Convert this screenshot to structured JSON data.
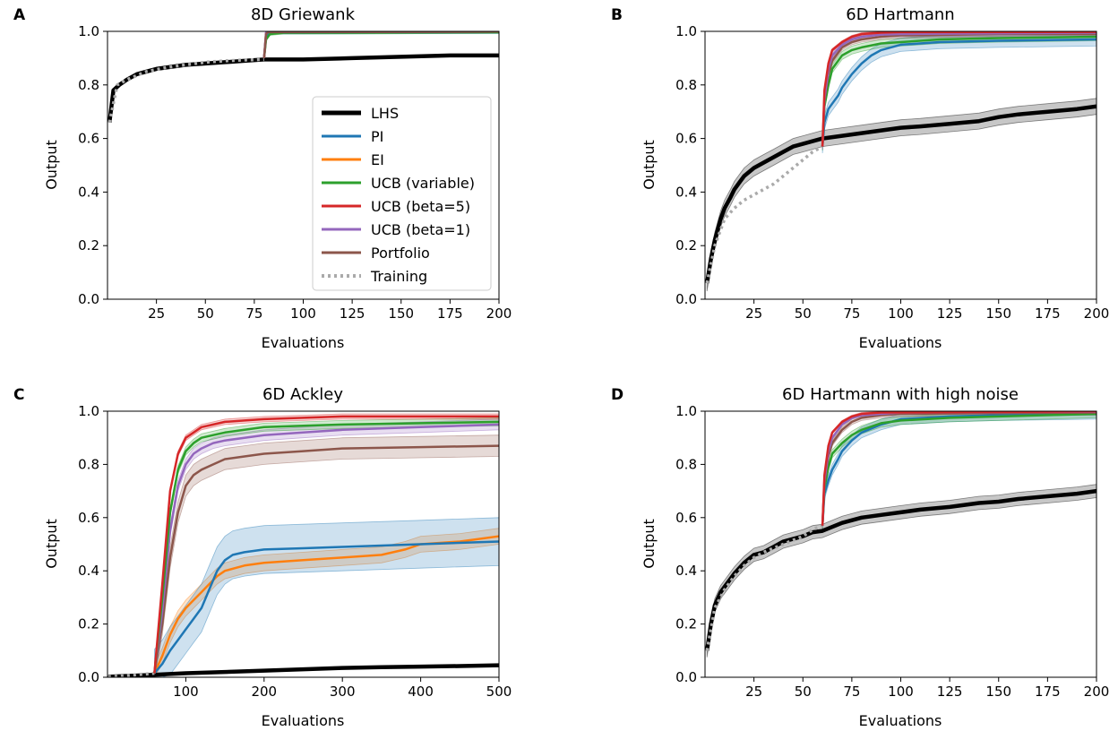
{
  "figure": {
    "legend": {
      "location": "right side of panel A",
      "entries": [
        {
          "label": "LHS",
          "color": "#000000",
          "style": "solid-thick"
        },
        {
          "label": "PI",
          "color": "#1f77b4",
          "style": "solid"
        },
        {
          "label": "EI",
          "color": "#ff7f0e",
          "style": "solid"
        },
        {
          "label": "UCB (variable)",
          "color": "#2ca02c",
          "style": "solid"
        },
        {
          "label": "UCB (beta=5)",
          "color": "#d62728",
          "style": "solid"
        },
        {
          "label": "UCB (beta=1)",
          "color": "#9467bd",
          "style": "solid"
        },
        {
          "label": "Portfolio",
          "color": "#8c564b",
          "style": "solid"
        },
        {
          "label": "Training",
          "color": "#aaaaaa",
          "style": "dotted"
        }
      ]
    }
  },
  "chart_data": [
    {
      "panel": "A",
      "type": "line",
      "title": "8D Griewank",
      "xlabel": "Evaluations",
      "ylabel": "Output",
      "xlim": [
        0,
        200
      ],
      "ylim": [
        0,
        1
      ],
      "xticks": [
        25,
        50,
        75,
        100,
        125,
        150,
        175,
        200
      ],
      "yticks": [
        0.0,
        0.2,
        0.4,
        0.6,
        0.8,
        1.0
      ],
      "series": [
        {
          "name": "LHS",
          "x": [
            1,
            3,
            6,
            10,
            15,
            20,
            25,
            30,
            40,
            50,
            60,
            70,
            80,
            100,
            125,
            150,
            175,
            200
          ],
          "y": [
            0.66,
            0.78,
            0.8,
            0.82,
            0.84,
            0.85,
            0.86,
            0.865,
            0.875,
            0.88,
            0.885,
            0.89,
            0.895,
            0.895,
            0.9,
            0.905,
            0.91,
            0.91
          ],
          "band": 0.0
        },
        {
          "name": "Training",
          "x": [
            1,
            5,
            10,
            20,
            30,
            40,
            50,
            60,
            70,
            80
          ],
          "y": [
            0.66,
            0.8,
            0.82,
            0.85,
            0.865,
            0.875,
            0.885,
            0.89,
            0.893,
            0.895
          ]
        },
        {
          "name": "PI",
          "x": [
            80,
            81,
            82,
            85,
            90,
            100,
            200
          ],
          "y": [
            0.9,
            0.98,
            0.99,
            0.995,
            0.995,
            0.995,
            0.997
          ],
          "band": 0.005
        },
        {
          "name": "UCB (variable)",
          "x": [
            80,
            81,
            83,
            90,
            200
          ],
          "y": [
            0.9,
            0.97,
            0.99,
            0.995,
            0.997
          ],
          "band": 0.005
        },
        {
          "name": "UCB (beta=5)",
          "x": [
            80,
            81,
            82,
            200
          ],
          "y": [
            0.9,
            0.995,
            0.998,
            0.999
          ],
          "band": 0.0
        },
        {
          "name": "UCB (beta=1)",
          "x": [
            80,
            81,
            82,
            200
          ],
          "y": [
            0.9,
            0.995,
            0.998,
            0.999
          ],
          "band": 0.0
        },
        {
          "name": "Portfolio",
          "x": [
            80,
            81,
            82,
            200
          ],
          "y": [
            0.9,
            0.99,
            0.997,
            0.999
          ],
          "band": 0.0
        }
      ]
    },
    {
      "panel": "B",
      "type": "line",
      "title": "6D Hartmann",
      "xlabel": "Evaluations",
      "ylabel": "Output",
      "xlim": [
        0,
        200
      ],
      "ylim": [
        0,
        1
      ],
      "xticks": [
        25,
        50,
        75,
        100,
        125,
        150,
        175,
        200
      ],
      "yticks": [
        0.0,
        0.2,
        0.4,
        0.6,
        0.8,
        1.0
      ],
      "series": [
        {
          "name": "LHS",
          "x": [
            1,
            3,
            5,
            8,
            10,
            13,
            15,
            18,
            20,
            25,
            30,
            35,
            40,
            45,
            50,
            55,
            60,
            70,
            80,
            90,
            100,
            110,
            125,
            140,
            150,
            160,
            175,
            190,
            200
          ],
          "y": [
            0.06,
            0.15,
            0.22,
            0.3,
            0.34,
            0.38,
            0.41,
            0.44,
            0.46,
            0.49,
            0.51,
            0.53,
            0.55,
            0.57,
            0.58,
            0.59,
            0.6,
            0.61,
            0.62,
            0.63,
            0.64,
            0.645,
            0.655,
            0.665,
            0.68,
            0.69,
            0.7,
            0.71,
            0.72
          ],
          "band": 0.03
        },
        {
          "name": "Training",
          "x": [
            1,
            5,
            10,
            15,
            20,
            25,
            30,
            35,
            40,
            45,
            50,
            55,
            60
          ],
          "y": [
            0.06,
            0.2,
            0.3,
            0.34,
            0.37,
            0.39,
            0.41,
            0.43,
            0.46,
            0.49,
            0.52,
            0.55,
            0.57
          ]
        },
        {
          "name": "PI",
          "x": [
            60,
            61,
            63,
            65,
            68,
            70,
            75,
            80,
            85,
            90,
            100,
            120,
            150,
            200
          ],
          "y": [
            0.57,
            0.66,
            0.71,
            0.73,
            0.76,
            0.79,
            0.84,
            0.88,
            0.91,
            0.93,
            0.95,
            0.96,
            0.965,
            0.97
          ],
          "band": 0.025
        },
        {
          "name": "UCB (variable)",
          "x": [
            60,
            61,
            63,
            65,
            70,
            75,
            80,
            90,
            100,
            120,
            150,
            200
          ],
          "y": [
            0.57,
            0.72,
            0.8,
            0.86,
            0.91,
            0.93,
            0.94,
            0.955,
            0.96,
            0.97,
            0.975,
            0.98
          ],
          "band": 0.015
        },
        {
          "name": "Portfolio",
          "x": [
            60,
            61,
            63,
            65,
            70,
            75,
            80,
            90,
            100,
            150,
            200
          ],
          "y": [
            0.57,
            0.74,
            0.84,
            0.89,
            0.94,
            0.96,
            0.97,
            0.98,
            0.985,
            0.99,
            0.99
          ],
          "band": 0.01
        },
        {
          "name": "UCB (beta=1)",
          "x": [
            60,
            61,
            63,
            65,
            70,
            75,
            80,
            90,
            100,
            200
          ],
          "y": [
            0.57,
            0.75,
            0.86,
            0.91,
            0.95,
            0.97,
            0.98,
            0.988,
            0.99,
            0.995
          ],
          "band": 0.01
        },
        {
          "name": "UCB (beta=5)",
          "x": [
            60,
            61,
            63,
            65,
            70,
            75,
            80,
            90,
            100,
            200
          ],
          "y": [
            0.57,
            0.78,
            0.88,
            0.93,
            0.96,
            0.98,
            0.99,
            0.995,
            0.997,
            0.998
          ],
          "band": 0.005
        }
      ]
    },
    {
      "panel": "C",
      "type": "line",
      "title": "6D Ackley",
      "xlabel": "Evaluations",
      "ylabel": "Output",
      "xlim": [
        0,
        500
      ],
      "ylim": [
        0,
        1
      ],
      "xticks": [
        100,
        200,
        300,
        400,
        500
      ],
      "yticks": [
        0.0,
        0.2,
        0.4,
        0.6,
        0.8,
        1.0
      ],
      "series": [
        {
          "name": "LHS",
          "x": [
            1,
            50,
            100,
            150,
            200,
            250,
            300,
            350,
            400,
            450,
            500
          ],
          "y": [
            0.002,
            0.008,
            0.015,
            0.02,
            0.025,
            0.03,
            0.035,
            0.038,
            0.04,
            0.042,
            0.045
          ],
          "band": 0.003
        },
        {
          "name": "Training",
          "x": [
            1,
            20,
            40,
            60
          ],
          "y": [
            0.002,
            0.005,
            0.01,
            0.015
          ]
        },
        {
          "name": "EI",
          "x": [
            60,
            70,
            80,
            90,
            100,
            110,
            120,
            130,
            140,
            150,
            175,
            200,
            250,
            300,
            350,
            380,
            400,
            450,
            500
          ],
          "y": [
            0.015,
            0.08,
            0.16,
            0.22,
            0.26,
            0.29,
            0.32,
            0.35,
            0.38,
            0.4,
            0.42,
            0.43,
            0.44,
            0.45,
            0.46,
            0.48,
            0.5,
            0.51,
            0.53
          ],
          "band": 0.03
        },
        {
          "name": "PI",
          "x": [
            60,
            70,
            80,
            90,
            100,
            110,
            120,
            130,
            140,
            150,
            160,
            175,
            200,
            250,
            300,
            400,
            500
          ],
          "y": [
            0.015,
            0.05,
            0.1,
            0.14,
            0.18,
            0.22,
            0.26,
            0.33,
            0.4,
            0.44,
            0.46,
            0.47,
            0.48,
            0.485,
            0.49,
            0.5,
            0.51
          ],
          "band": 0.09
        },
        {
          "name": "Portfolio",
          "x": [
            60,
            70,
            80,
            90,
            100,
            110,
            120,
            135,
            150,
            175,
            200,
            250,
            300,
            400,
            500
          ],
          "y": [
            0.015,
            0.2,
            0.45,
            0.62,
            0.72,
            0.76,
            0.78,
            0.8,
            0.82,
            0.83,
            0.84,
            0.85,
            0.86,
            0.865,
            0.87
          ],
          "band": 0.04
        },
        {
          "name": "UCB (beta=1)",
          "x": [
            60,
            70,
            80,
            90,
            100,
            110,
            120,
            135,
            150,
            175,
            200,
            250,
            300,
            400,
            500
          ],
          "y": [
            0.015,
            0.25,
            0.55,
            0.72,
            0.8,
            0.84,
            0.86,
            0.88,
            0.89,
            0.9,
            0.91,
            0.92,
            0.93,
            0.94,
            0.95
          ],
          "band": 0.02
        },
        {
          "name": "UCB (variable)",
          "x": [
            60,
            70,
            80,
            90,
            100,
            110,
            120,
            135,
            150,
            175,
            200,
            250,
            300,
            400,
            500
          ],
          "y": [
            0.015,
            0.3,
            0.62,
            0.78,
            0.85,
            0.88,
            0.9,
            0.91,
            0.92,
            0.93,
            0.94,
            0.945,
            0.95,
            0.955,
            0.96
          ],
          "band": 0.015
        },
        {
          "name": "UCB (beta=5)",
          "x": [
            60,
            70,
            80,
            90,
            100,
            110,
            120,
            135,
            150,
            175,
            200,
            250,
            300,
            400,
            500
          ],
          "y": [
            0.015,
            0.35,
            0.7,
            0.84,
            0.9,
            0.92,
            0.94,
            0.95,
            0.96,
            0.965,
            0.97,
            0.975,
            0.98,
            0.98,
            0.98
          ],
          "band": 0.01
        }
      ]
    },
    {
      "panel": "D",
      "type": "line",
      "title": "6D Hartmann with high noise",
      "xlabel": "Evaluations",
      "ylabel": "Output",
      "xlim": [
        0,
        200
      ],
      "ylim": [
        0,
        1
      ],
      "xticks": [
        25,
        50,
        75,
        100,
        125,
        150,
        175,
        200
      ],
      "yticks": [
        0.0,
        0.2,
        0.4,
        0.6,
        0.8,
        1.0
      ],
      "series": [
        {
          "name": "LHS",
          "x": [
            1,
            3,
            5,
            8,
            10,
            15,
            20,
            25,
            30,
            35,
            40,
            45,
            50,
            55,
            60,
            70,
            80,
            90,
            100,
            110,
            125,
            140,
            150,
            160,
            175,
            190,
            200
          ],
          "y": [
            0.1,
            0.2,
            0.27,
            0.32,
            0.34,
            0.39,
            0.43,
            0.46,
            0.47,
            0.49,
            0.51,
            0.52,
            0.53,
            0.545,
            0.55,
            0.58,
            0.6,
            0.61,
            0.62,
            0.63,
            0.64,
            0.655,
            0.66,
            0.67,
            0.68,
            0.69,
            0.7
          ],
          "band": 0.025
        },
        {
          "name": "Training",
          "x": [
            1,
            5,
            10,
            15,
            20,
            25,
            30,
            40,
            50,
            55,
            60
          ],
          "y": [
            0.1,
            0.26,
            0.33,
            0.38,
            0.42,
            0.45,
            0.47,
            0.5,
            0.53,
            0.555,
            0.57
          ]
        },
        {
          "name": "PI",
          "x": [
            60,
            61,
            63,
            65,
            68,
            70,
            75,
            80,
            90,
            100,
            125,
            150,
            200
          ],
          "y": [
            0.57,
            0.69,
            0.74,
            0.78,
            0.82,
            0.85,
            0.89,
            0.92,
            0.95,
            0.97,
            0.98,
            0.985,
            0.99
          ],
          "band": 0.02
        },
        {
          "name": "UCB (variable)",
          "x": [
            60,
            61,
            63,
            65,
            70,
            75,
            80,
            90,
            100,
            125,
            150,
            200
          ],
          "y": [
            0.57,
            0.71,
            0.79,
            0.84,
            0.88,
            0.91,
            0.93,
            0.955,
            0.965,
            0.975,
            0.98,
            0.99
          ],
          "band": 0.015
        },
        {
          "name": "Portfolio",
          "x": [
            60,
            61,
            63,
            65,
            70,
            75,
            80,
            90,
            100,
            200
          ],
          "y": [
            0.57,
            0.73,
            0.83,
            0.88,
            0.93,
            0.96,
            0.975,
            0.985,
            0.99,
            0.995
          ],
          "band": 0.01
        },
        {
          "name": "UCB (beta=1)",
          "x": [
            60,
            61,
            63,
            65,
            70,
            75,
            80,
            90,
            100,
            200
          ],
          "y": [
            0.57,
            0.74,
            0.85,
            0.9,
            0.95,
            0.975,
            0.985,
            0.99,
            0.995,
            0.998
          ],
          "band": 0.005
        },
        {
          "name": "UCB (beta=5)",
          "x": [
            60,
            61,
            63,
            65,
            70,
            75,
            80,
            90,
            200
          ],
          "y": [
            0.57,
            0.76,
            0.87,
            0.92,
            0.96,
            0.98,
            0.99,
            0.995,
            0.999
          ],
          "band": 0.005
        }
      ]
    }
  ]
}
